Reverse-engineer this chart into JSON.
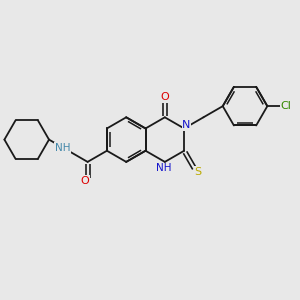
{
  "background_color": "#e8e8e8",
  "figure_size": [
    3.0,
    3.0
  ],
  "dpi": 100,
  "colors": {
    "bond": "#1a1a1a",
    "N": "#1414cc",
    "O": "#dd0000",
    "S": "#bbaa00",
    "Cl": "#338800",
    "NH_color": "#4488aa"
  },
  "bond_lw": 1.3,
  "font_size": 7.5
}
